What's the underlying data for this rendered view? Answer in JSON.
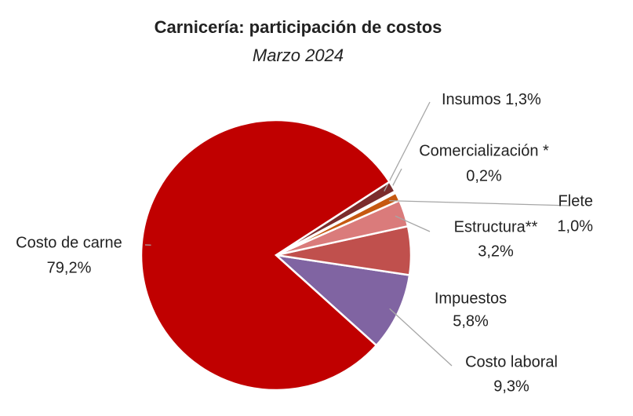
{
  "chart_data": {
    "type": "pie",
    "title": "Carnicería: participación de costos",
    "subtitle": "Marzo 2024",
    "categories": [
      "Costo laboral",
      "Impuestos",
      "Estructura**",
      "Flete",
      "Comercialización *",
      "Insumos",
      "Costo de carne"
    ],
    "values": [
      9.3,
      5.8,
      3.2,
      1.0,
      0.2,
      1.3,
      79.2
    ],
    "value_labels": [
      "9,3%",
      "5,8%",
      "3,2%",
      "1,0%",
      "0,2%",
      "1,3%",
      "79,2%"
    ],
    "colors": [
      "#8064a2",
      "#c0504d",
      "#da7b7b",
      "#c65911",
      "#f4b183",
      "#7b2c2c",
      "#c00000"
    ]
  }
}
